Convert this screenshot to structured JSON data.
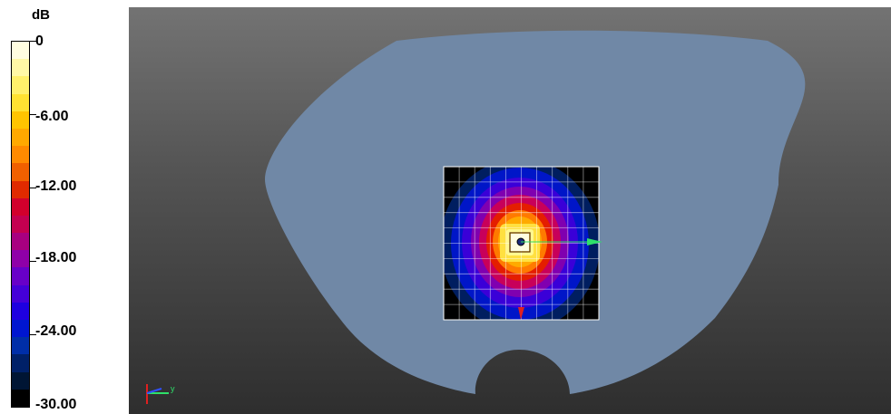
{
  "legend": {
    "unit": "dB",
    "labels": [
      "0",
      "-6.00",
      "-12.00",
      "-18.00",
      "-24.00",
      "-30.00"
    ],
    "colors": [
      "#fffde0",
      "#fff8a6",
      "#fff06b",
      "#ffe232",
      "#ffc400",
      "#ffa900",
      "#ff8a00",
      "#f06000",
      "#e02a00",
      "#d2002c",
      "#c40050",
      "#a80080",
      "#8f00a8",
      "#6800c8",
      "#4400d8",
      "#1e00e0",
      "#0016d0",
      "#002ea8",
      "#002068",
      "#001534",
      "#000000"
    ],
    "range_db": [
      -30,
      0
    ]
  },
  "viewport": {
    "axis_label": "y",
    "colors": {
      "background_top": "#737373",
      "background_bottom": "#2e2e2e",
      "phantom": "#7088a6",
      "grid": "#ffffff",
      "arrow_green": "#2ee06a",
      "arrow_red": "#e02020",
      "probe_dot": "#1c2a7a"
    }
  }
}
